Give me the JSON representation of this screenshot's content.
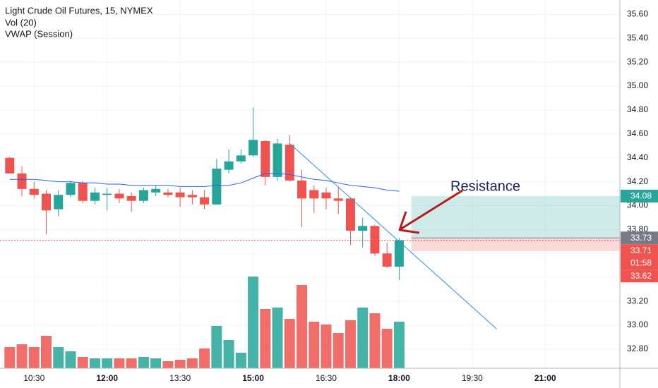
{
  "chart_data": {
    "type": "candlestick",
    "title": "Light Crude Oil Futures, 15, NYMEX",
    "x": [
      600,
      615,
      630,
      645,
      660,
      675,
      690,
      705,
      720,
      735,
      750,
      765,
      780,
      795,
      810,
      825,
      840,
      855,
      870,
      885,
      900,
      915,
      930,
      945,
      960,
      975,
      990,
      1005,
      1020,
      1035,
      1050,
      1065,
      1080
    ],
    "open": [
      34.4,
      34.27,
      34.14,
      34.1,
      33.97,
      34.09,
      34.19,
      34.04,
      34.09,
      34.1,
      34.08,
      34.04,
      34.11,
      34.11,
      34.11,
      34.09,
      34.07,
      34.01,
      34.3,
      34.37,
      34.42,
      34.54,
      34.24,
      34.51,
      34.21,
      34.13,
      34.11,
      34.06,
      34.06,
      33.79,
      33.83,
      33.6,
      33.49
    ],
    "high": [
      34.41,
      34.33,
      34.2,
      34.13,
      34.13,
      34.21,
      34.21,
      34.15,
      34.15,
      34.14,
      34.11,
      34.15,
      34.17,
      34.14,
      34.15,
      34.13,
      34.13,
      34.39,
      34.47,
      34.47,
      34.82,
      34.55,
      34.56,
      34.59,
      34.3,
      34.17,
      34.15,
      34.16,
      34.07,
      33.9,
      33.84,
      33.69,
      33.73
    ],
    "low": [
      34.27,
      34.08,
      34.06,
      33.76,
      33.91,
      34.07,
      34.02,
      34.01,
      33.96,
      34.02,
      33.95,
      34.02,
      34.08,
      34.07,
      33.99,
      34.01,
      33.97,
      34.01,
      34.27,
      34.35,
      34.41,
      34.17,
      34.21,
      34.2,
      33.82,
      33.94,
      33.97,
      33.93,
      33.67,
      33.65,
      33.58,
      33.48,
      33.38
    ],
    "close": [
      34.27,
      34.14,
      34.09,
      33.96,
      34.09,
      34.19,
      34.04,
      34.11,
      34.1,
      34.06,
      34.04,
      34.13,
      34.14,
      34.09,
      34.07,
      34.07,
      34.01,
      34.31,
      34.37,
      34.42,
      34.55,
      34.24,
      34.52,
      34.21,
      34.06,
      34.06,
      34.06,
      34.04,
      33.79,
      33.83,
      33.6,
      33.49,
      33.71
    ],
    "up_color": "#26a69a",
    "down_color": "#ef5350",
    "volume": {
      "name": "Vol (20)",
      "values": [
        30,
        34,
        30,
        46,
        30,
        24,
        16,
        14,
        14,
        14,
        14,
        16,
        14,
        10,
        12,
        14,
        28,
        60,
        40,
        22,
        130,
        84,
        86,
        70,
        118,
        66,
        62,
        50,
        68,
        86,
        78,
        56,
        66
      ]
    },
    "vwap": {
      "name": "VWAP (Session)",
      "color": "#2962ff",
      "values": [
        34.22,
        34.22,
        34.22,
        34.21,
        34.2,
        34.2,
        34.19,
        34.19,
        34.18,
        34.18,
        34.17,
        34.17,
        34.17,
        34.17,
        34.16,
        34.16,
        34.16,
        34.17,
        34.17,
        34.19,
        34.23,
        34.27,
        34.27,
        34.26,
        34.24,
        34.22,
        34.21,
        34.19,
        34.17,
        34.16,
        34.15,
        34.13,
        34.12
      ]
    },
    "trendline": {
      "color": "#2196f3",
      "x": [
        945,
        1200
      ],
      "y": [
        34.52,
        32.97
      ]
    },
    "position": {
      "x_start": 1095,
      "entry": 33.73,
      "target": 34.08,
      "stop": 33.62,
      "entry_color": "#787b86"
    },
    "last_price": {
      "value": 33.71,
      "countdown": "01:58"
    },
    "annotation": "Resistance",
    "xlim": [
      588,
      1352
    ],
    "ylim": [
      32.64,
      35.72
    ],
    "xticks": [
      {
        "value": 630,
        "label": "10:30"
      },
      {
        "value": 720,
        "label": "12:00"
      },
      {
        "value": 810,
        "label": "13:30"
      },
      {
        "value": 900,
        "label": "15:00"
      },
      {
        "value": 990,
        "label": "16:30"
      },
      {
        "value": 1080,
        "label": "18:00"
      },
      {
        "value": 1170,
        "label": "19:30"
      },
      {
        "value": 1260,
        "label": "21:00"
      }
    ],
    "yticks": [
      {
        "value": 32.8,
        "label": "32.80"
      },
      {
        "value": 33.0,
        "label": "33.00"
      },
      {
        "value": 33.2,
        "label": "33.20"
      },
      {
        "value": 33.4,
        "label": "33.40"
      },
      {
        "value": 33.6,
        "label": "33.60"
      },
      {
        "value": 33.8,
        "label": "33.80"
      },
      {
        "value": 34.0,
        "label": "34.00"
      },
      {
        "value": 34.2,
        "label": "34.20"
      },
      {
        "value": 34.4,
        "label": "34.40"
      },
      {
        "value": 34.6,
        "label": "34.60"
      },
      {
        "value": 34.8,
        "label": "34.80"
      },
      {
        "value": 35.0,
        "label": "35.00"
      },
      {
        "value": 35.2,
        "label": "35.20"
      },
      {
        "value": 35.4,
        "label": "35.40"
      },
      {
        "value": 35.6,
        "label": "35.60"
      }
    ],
    "grid": true
  }
}
